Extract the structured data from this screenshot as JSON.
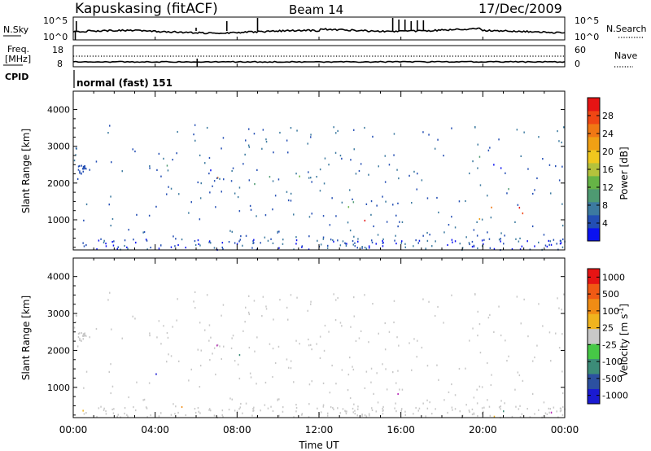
{
  "header": {
    "station": "Kapuskasing (fitACF)",
    "beam": "Beam 14",
    "date": "17/Dec/2009"
  },
  "nsky_panel": {
    "label": "N.Sky",
    "right_label": "N.Search",
    "left_ticks": [
      "10^5",
      "10^0"
    ],
    "right_ticks": [
      "10^5",
      "10^0"
    ]
  },
  "freq_panel": {
    "label_top": "Freq.",
    "label_bottom": "[MHz]",
    "right_label": "Nave",
    "left_ticks": [
      "18",
      "8"
    ],
    "right_ticks": [
      "60",
      "0"
    ]
  },
  "cpid": {
    "label": "CPID",
    "value": "normal (fast) 151"
  },
  "chart_data": [
    {
      "type": "heatmap",
      "parameter": "power",
      "ylabel": "Slant Range [km]",
      "ylim": [
        180,
        4500
      ],
      "y_ticks": [
        "1000",
        "2000",
        "3000",
        "4000"
      ],
      "colorbar": {
        "label": "Power [dB]",
        "range": [
          0,
          32
        ],
        "ticks": [
          "4",
          "8",
          "12",
          "16",
          "20",
          "24",
          "28"
        ],
        "colors": [
          "#0a12f0",
          "#234eb4",
          "#3c7aa0",
          "#4e9a72",
          "#66b446",
          "#b4c23c",
          "#f0c81e",
          "#f0a014",
          "#f07814",
          "#f04614",
          "#e61414"
        ]
      },
      "regions": [
        {
          "t": [
            3.8,
            9.3
          ],
          "r": [
            2050,
            2600
          ],
          "level": 0.3
        },
        {
          "t": [
            6.8,
            9.5
          ],
          "r": [
            1850,
            2300
          ],
          "level": 0.6
        },
        {
          "t": [
            7.3,
            8.7
          ],
          "r": [
            2700,
            3400
          ],
          "level": 0.2
        },
        {
          "t": [
            9.5,
            10.8
          ],
          "r": [
            1750,
            2300
          ],
          "level": 0.45
        },
        {
          "t": [
            10.6,
            11.3
          ],
          "r": [
            2000,
            2750
          ],
          "level": 0.35
        },
        {
          "t": [
            12.8,
            14.0
          ],
          "r": [
            1300,
            2100
          ],
          "level": 0.35
        },
        {
          "t": [
            13.5,
            22.6
          ],
          "r": [
            1350,
            1700
          ],
          "level": 0.35
        },
        {
          "t": [
            13.5,
            22.6
          ],
          "r": [
            1000,
            1400
          ],
          "level": 0.75
        },
        {
          "t": [
            15.0,
            21.5
          ],
          "r": [
            1700,
            2800
          ],
          "level": 0.15
        },
        {
          "t": [
            21.8,
            23.2
          ],
          "r": [
            1000,
            1300
          ],
          "level": 0.4
        },
        {
          "t": [
            21.8,
            22.6
          ],
          "r": [
            600,
            900
          ],
          "level": 0.3
        }
      ]
    },
    {
      "type": "heatmap",
      "parameter": "velocity",
      "xlabel": "Time UT",
      "ylabel": "Slant Range [km]",
      "xlim": [
        0,
        24
      ],
      "ylim": [
        180,
        4500
      ],
      "x_ticks": [
        "00:00",
        "04:00",
        "08:00",
        "12:00",
        "16:00",
        "20:00",
        "00:00"
      ],
      "y_ticks": [
        "1000",
        "2000",
        "3000",
        "4000"
      ],
      "colorbar": {
        "label": "Velocity [m s",
        "label_superscript": "-1",
        "label_end": "]",
        "ticks": [
          "1000",
          "500",
          "100",
          "25",
          "-25",
          "-100",
          "-500",
          "-1000"
        ],
        "colors": [
          "#1a1ad2",
          "#2c50a0",
          "#3c8c78",
          "#46c846",
          "#c8c8c8",
          "#f0b41e",
          "#f08c14",
          "#f05a14",
          "#e61414"
        ]
      }
    }
  ]
}
